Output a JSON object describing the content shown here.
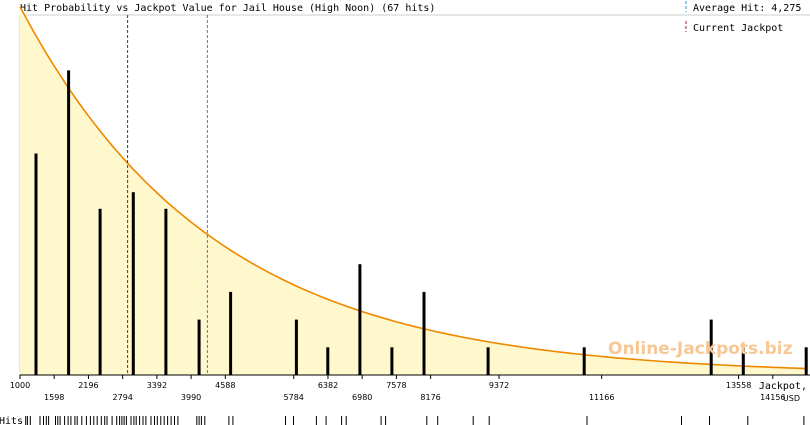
{
  "chart_data": {
    "type": "bar",
    "title": "Hit Probability vs Jackpot Value for Jail House (High Noon) (67 hits)",
    "xlabel_line1": "Jackpot,",
    "xlabel_line2": "USD",
    "rug_label": "Hits",
    "watermark": "Online-Jackpots.biz",
    "xlim": [
      1000,
      14754
    ],
    "ylim": [
      0,
      13
    ],
    "ticks_upper": [
      1000,
      2196,
      3392,
      4588,
      6382,
      7578,
      9372,
      13558
    ],
    "ticks_lower": [
      1598,
      2794,
      3990,
      5784,
      6980,
      8176,
      11166,
      14156
    ],
    "bars": [
      {
        "x": 1280,
        "count": 8
      },
      {
        "x": 1850,
        "count": 11
      },
      {
        "x": 2400,
        "count": 6
      },
      {
        "x": 2980,
        "count": 6.6
      },
      {
        "x": 3550,
        "count": 6
      },
      {
        "x": 4130,
        "count": 2
      },
      {
        "x": 4680,
        "count": 3
      },
      {
        "x": 5830,
        "count": 2
      },
      {
        "x": 6380,
        "count": 1
      },
      {
        "x": 6940,
        "count": 4
      },
      {
        "x": 7500,
        "count": 1
      },
      {
        "x": 8060,
        "count": 3
      },
      {
        "x": 9180,
        "count": 1
      },
      {
        "x": 10860,
        "count": 1
      },
      {
        "x": 13080,
        "count": 2
      },
      {
        "x": 13640,
        "count": 1
      },
      {
        "x": 14740,
        "count": 1
      }
    ],
    "curve": {
      "start": 13.3,
      "decay": 3400
    },
    "hit_marks": [
      1100,
      1130,
      1180,
      1350,
      1410,
      1460,
      1500,
      1620,
      1660,
      1700,
      1780,
      1840,
      1890,
      1960,
      2000,
      2080,
      2160,
      2230,
      2290,
      2350,
      2420,
      2480,
      2520,
      2610,
      2690,
      2740,
      2780,
      2820,
      2860,
      2940,
      2990,
      3030,
      3090,
      3150,
      3200,
      3290,
      3350,
      3400,
      3460,
      3520,
      3580,
      3640,
      3700,
      3760,
      4090,
      4130,
      4170,
      4230,
      4650,
      4720,
      5640,
      5780,
      6180,
      6350,
      6620,
      6700,
      7310,
      7390,
      8110,
      8300,
      8920,
      9200,
      10910,
      12560,
      13050,
      13720,
      14700
    ],
    "average_hit": 4275,
    "current_jackpot": 2880,
    "legend": {
      "average": "Average Hit: 4,275",
      "current": "Current Jackpot"
    },
    "colors": {
      "fill": "#fff8cc",
      "curve": "#ee8800",
      "bar": "#000000",
      "average_line": "#1e90d8",
      "current_line": "#a01818",
      "grid": "#cccccc",
      "watermark": "#f5c896"
    }
  }
}
